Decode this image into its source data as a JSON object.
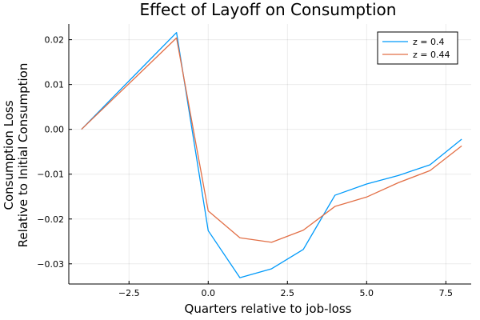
{
  "chart_data": {
    "type": "line",
    "title": "Effect of Layoff on Consumption",
    "xlabel": "Quarters relative to job-loss",
    "ylabel_lines": [
      "Consumption Loss",
      "Relative to Initial Consumption"
    ],
    "x": [
      -4,
      -3,
      -2,
      -1,
      0,
      1,
      2,
      3,
      4,
      5,
      6,
      7,
      8
    ],
    "xlim": [
      -4.4,
      8.3
    ],
    "ylim": [
      -0.0345,
      0.0235
    ],
    "xticks": [
      -2.5,
      0.0,
      2.5,
      5.0,
      7.5
    ],
    "xtick_labels": [
      "−2.5",
      "0.0",
      "2.5",
      "5.0",
      "7.5"
    ],
    "yticks": [
      -0.03,
      -0.02,
      -0.01,
      0.0,
      0.01,
      0.02
    ],
    "ytick_labels": [
      "−0.03",
      "−0.02",
      "−0.01",
      "0.00",
      "0.01",
      "0.02"
    ],
    "grid": true,
    "legend_position": "top-right",
    "series": [
      {
        "name": "z = 0.4",
        "color": "#009AFA",
        "values": [
          0.0,
          0.0072,
          0.0144,
          0.0216,
          -0.0226,
          -0.0331,
          -0.0311,
          -0.0268,
          -0.0147,
          -0.0122,
          -0.0103,
          -0.0079,
          -0.0022
        ]
      },
      {
        "name": "z = 0.44",
        "color": "#E26F46",
        "values": [
          0.0,
          0.0068,
          0.0136,
          0.0204,
          -0.0182,
          -0.0242,
          -0.0252,
          -0.0225,
          -0.0172,
          -0.0151,
          -0.0119,
          -0.0092,
          -0.0037
        ]
      }
    ]
  }
}
